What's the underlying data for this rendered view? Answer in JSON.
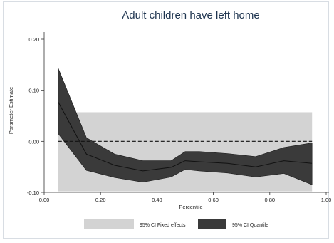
{
  "chart_data": {
    "type": "area",
    "title": "Adult children have left home",
    "xlabel": "Percentile",
    "ylabel": "Parameter Estimate",
    "xlim": [
      0.0,
      1.0
    ],
    "ylim": [
      -0.1,
      0.2
    ],
    "xticks": [
      "0.00",
      "0.20",
      "0.40",
      "0.60",
      "0.80",
      "1.00"
    ],
    "yticks": [
      "-0.10",
      "0.00",
      "0.10",
      "0.20"
    ],
    "reference_line": 0.0,
    "fixed_effects_band": {
      "x_range": [
        0.05,
        0.95
      ],
      "lower": -0.098,
      "upper": 0.057,
      "color": "#d3d3d3"
    },
    "quantile_band": {
      "x": [
        0.05,
        0.15,
        0.25,
        0.35,
        0.45,
        0.5,
        0.55,
        0.65,
        0.75,
        0.85,
        0.95
      ],
      "estimate": [
        0.077,
        -0.025,
        -0.047,
        -0.058,
        -0.051,
        -0.038,
        -0.04,
        -0.043,
        -0.05,
        -0.038,
        -0.043
      ],
      "lower": [
        0.015,
        -0.057,
        -0.071,
        -0.08,
        -0.07,
        -0.055,
        -0.058,
        -0.062,
        -0.07,
        -0.063,
        -0.085
      ],
      "upper": [
        0.143,
        0.007,
        -0.025,
        -0.038,
        -0.038,
        -0.02,
        -0.02,
        -0.024,
        -0.03,
        -0.012,
        -0.003
      ],
      "color": "#3a3a3a"
    },
    "legend": {
      "position": "bottom",
      "items": [
        {
          "label": "95% CI Fixed effects",
          "color": "#d3d3d3"
        },
        {
          "label": "95% CI Quantile",
          "color": "#3a3a3a"
        }
      ]
    },
    "grid": false
  }
}
